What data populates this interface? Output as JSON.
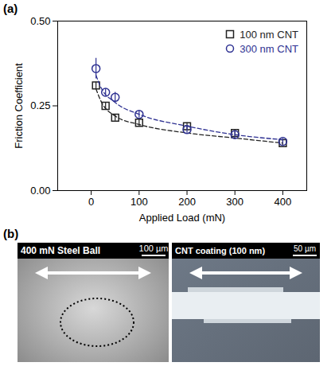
{
  "chart_data": {
    "type": "scatter",
    "x_label": "Applied Load (mN)",
    "y_label": "Friction Coefficient",
    "x": [
      10,
      30,
      50,
      100,
      200,
      300,
      400
    ],
    "series": [
      {
        "name": "100 nm CNT",
        "color": "#222222",
        "marker": "square",
        "values": [
          0.31,
          0.25,
          0.215,
          0.2,
          0.19,
          0.17,
          0.14
        ],
        "errors": [
          0.01,
          0.01,
          0.01,
          0.01,
          0.01,
          0.01,
          0.008
        ],
        "fit": {
          "line_style": "dashed",
          "x": [
            10,
            20,
            50,
            100,
            200,
            300,
            400
          ],
          "values": [
            0.3,
            0.265,
            0.22,
            0.195,
            0.17,
            0.155,
            0.14
          ]
        }
      },
      {
        "name": "300 nm CNT",
        "color": "#2e3192",
        "marker": "circle",
        "values": [
          0.36,
          0.29,
          0.275,
          0.225,
          0.18,
          0.165,
          0.145
        ],
        "errors": [
          0.03,
          0.01,
          0.015,
          0.01,
          0.01,
          0.01,
          0.008
        ],
        "fit": {
          "line_style": "dashed",
          "x": [
            10,
            20,
            50,
            100,
            200,
            300,
            400
          ],
          "values": [
            0.34,
            0.305,
            0.26,
            0.225,
            0.19,
            0.165,
            0.15
          ]
        }
      }
    ],
    "xlim": [
      -70,
      450
    ],
    "ylim": [
      0,
      0.5
    ],
    "xticks": [
      0,
      100,
      200,
      300,
      400
    ],
    "yticks": [
      {
        "value": 0,
        "label": "0.00"
      },
      {
        "value": 0.25,
        "label": "0.25"
      },
      {
        "value": 0.5,
        "label": "0.50"
      }
    ],
    "grid": false,
    "legend": "upper right"
  },
  "panel_a_label": "(a)",
  "panel_b": {
    "label": "(b)",
    "images": [
      {
        "label": "400 mN Steel Ball",
        "scale_bar": "100 µm"
      },
      {
        "label": "CNT coating (100 nm)",
        "scale_bar": "50 µm"
      }
    ]
  }
}
